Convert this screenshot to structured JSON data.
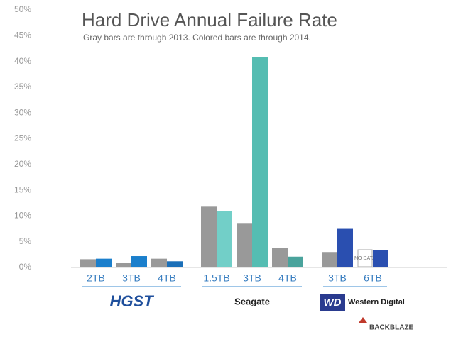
{
  "chart_data": {
    "type": "grouped-bar",
    "title": "Hard Drive Annual Failure Rate",
    "subtitle": "Gray bars are through 2013.  Colored bars are through 2014.",
    "groups": [
      {
        "name": "HGST",
        "categories": [
          "2TB",
          "3TB",
          "4TB"
        ]
      },
      {
        "name": "Seagate",
        "categories": [
          "1.5TB",
          "3TB",
          "4TB"
        ]
      },
      {
        "name": "Western Digital",
        "logo_mark": "WD",
        "categories": [
          "3TB",
          "6TB"
        ]
      }
    ],
    "series": [
      {
        "color": "#999999",
        "values": [
          1.6,
          0.9,
          1.7,
          11.8,
          8.5,
          3.8,
          3.0,
          null
        ],
        "null_label": "NO DATA"
      },
      {
        "colors": [
          "#1b7fcc",
          "#1b7fcc",
          "#1b6fb8",
          "#72cfc8",
          "#55bdb2",
          "#4aa39c",
          "#2a4fb0",
          "#2a4fb0"
        ],
        "values": [
          1.7,
          2.2,
          1.2,
          10.9,
          40.9,
          2.1,
          7.5,
          3.4
        ]
      }
    ],
    "ylim": [
      0,
      50
    ],
    "yticks": [
      {
        "value": 0,
        "label": "0%"
      },
      {
        "value": 5,
        "label": "5%"
      },
      {
        "value": 10,
        "label": "10%"
      },
      {
        "value": 15,
        "label": "15%"
      },
      {
        "value": 20,
        "label": "20%"
      },
      {
        "value": 25,
        "label": "25%"
      },
      {
        "value": 30,
        "label": "30%"
      },
      {
        "value": 35,
        "label": "35%"
      },
      {
        "value": 40,
        "label": "40%"
      },
      {
        "value": 45,
        "label": "45%"
      },
      {
        "value": 50,
        "label": "50%"
      }
    ],
    "source": "BACKBLAZE"
  }
}
